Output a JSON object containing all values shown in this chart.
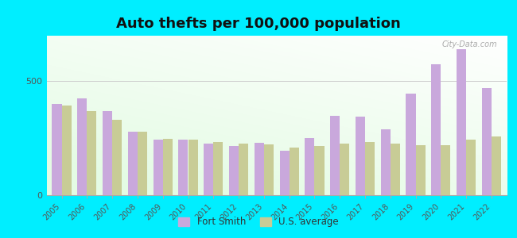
{
  "title": "Auto thefts per 100,000 population",
  "years": [
    2005,
    2006,
    2007,
    2008,
    2009,
    2010,
    2011,
    2012,
    2013,
    2014,
    2015,
    2016,
    2017,
    2018,
    2019,
    2020,
    2021,
    2022
  ],
  "fort_smith": [
    400,
    425,
    370,
    280,
    245,
    245,
    225,
    215,
    230,
    195,
    250,
    350,
    345,
    290,
    445,
    575,
    640,
    470
  ],
  "us_average": [
    395,
    370,
    330,
    278,
    248,
    243,
    232,
    228,
    223,
    210,
    215,
    228,
    235,
    228,
    220,
    218,
    245,
    258
  ],
  "fort_smith_color": "#c9a8dc",
  "us_average_color": "#c8cc96",
  "outer_bg": "#00eeff",
  "plot_bg_color": "#f0faf0",
  "ylim": [
    0,
    700
  ],
  "yticks": [
    0,
    500
  ],
  "bar_width": 0.38,
  "legend_labels": [
    "Fort Smith",
    "U.S. average"
  ],
  "title_fontsize": 13,
  "watermark": "City-Data.com"
}
